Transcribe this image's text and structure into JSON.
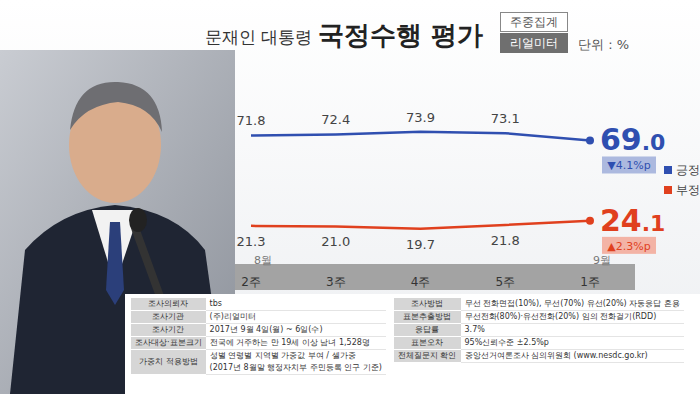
{
  "chart_data": {
    "type": "line",
    "subtitle": "문재인 대통령",
    "title": "국정수행 평가",
    "badges": [
      "주중집계",
      "리얼미터"
    ],
    "unit_label": "단위 : %",
    "categories": [
      "2주",
      "3주",
      "4주",
      "5주",
      "1주"
    ],
    "month_labels": [
      {
        "category": "2주",
        "label": "8월"
      },
      {
        "category": "1주",
        "label": "9월"
      }
    ],
    "series": [
      {
        "name": "긍정",
        "color": "#2f4fb0",
        "values": [
          71.8,
          72.4,
          73.9,
          73.1,
          69.0
        ],
        "value_labels": [
          "71.8",
          "72.4",
          "73.9",
          "73.1",
          "69.0"
        ],
        "change_label": "▼4.1%p"
      },
      {
        "name": "부정",
        "color": "#e0401e",
        "values": [
          21.3,
          21.0,
          19.7,
          21.8,
          24.1
        ],
        "value_labels": [
          "21.3",
          "21.0",
          "19.7",
          "21.8",
          "24.1"
        ],
        "change_label": "▲2.3%p"
      }
    ],
    "ylim": [
      0,
      100
    ],
    "data_labels": true,
    "tick_labels": "x",
    "legend": "right"
  },
  "survey_info": {
    "left": [
      [
        "조사의뢰자",
        [
          "tbs"
        ]
      ],
      [
        "조사기관",
        [
          "(주)리얼미터"
        ]
      ],
      [
        "조사기간",
        [
          "2017년 9월 4일(월) ~ 6일(수)"
        ]
      ],
      [
        "조사대상·표본크기",
        [
          "전국에 거주하는 만 19세 이상 남녀 1,528명"
        ]
      ],
      [
        "가중치 적용방법",
        [
          "성별 연령별 지역별 가중값 부여 / 셀가중",
          "(2017년 8월말 행정자치부 주민등록 인구 기준)"
        ]
      ]
    ],
    "right": [
      [
        "조사방법",
        [
          "무선 전화면접(10%), 무선(70%) 유선(20%) 자동응답 혼용"
        ]
      ],
      [
        "표본추출방법",
        [
          "무선전화(80%)·유선전화(20%) 임의 전화걸기(RDD)"
        ]
      ],
      [
        "응답률",
        [
          "3.7%"
        ]
      ],
      [
        "표본오차",
        [
          "95%신뢰수준 ±2.5%p"
        ]
      ],
      [
        "전체질문지 확인",
        [
          "중앙선거여론조사 심의위원회 (www.nesdc.go.kr)"
        ]
      ]
    ]
  }
}
